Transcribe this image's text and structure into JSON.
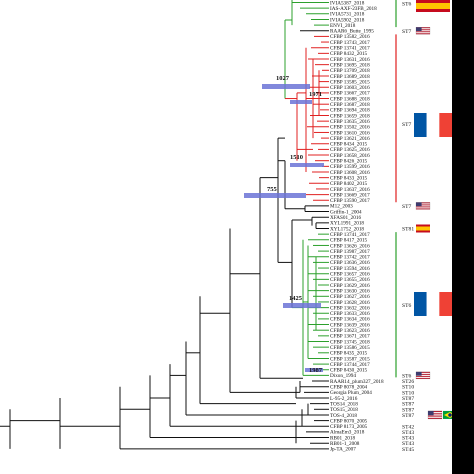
{
  "tree": {
    "nodes": [
      {
        "label": "1027"
      },
      {
        "label": "1971"
      },
      {
        "label": "1510"
      },
      {
        "label": "755"
      },
      {
        "label": "1425"
      },
      {
        "label": "1987"
      }
    ],
    "tips": [
      "IVIA5387_2018",
      "IAS-AXF-23FB_2018",
      "IVIA5731_2018",
      "IVIA5902_2018",
      "ENVI_2018",
      "RAAR6_Butte_1995",
      "CFBP 13582_2016",
      "CFBP 13743_2017",
      "CFBP 13741_2017",
      "CFBP 8432_2015",
      "CFBP 13631_2016",
      "CFBP 13695_2018",
      "CFBP 13709_2018",
      "CFBP 13689_2018",
      "CFBP 13585_2015",
      "CFBP 13603_2016",
      "CFBP 13667_2017",
      "CFBP 13688_2018",
      "CFBP 13687_2018",
      "CFBP 13694_2018",
      "CFBP 13659_2018",
      "CFBP 13635_2016",
      "CFBP 13502_2016",
      "CFBP 13610_2016",
      "CFBP 13621_2016",
      "CFBP 8434_2015",
      "CFBP 13625_2016",
      "CFBP 13658_2016",
      "CFBP 8426_2015",
      "CFBP 13599_2016",
      "CFBP 13608_2016",
      "CFBP 8433_2015",
      "CFBP 8402_2015",
      "CFBP 13637_2016",
      "CFBP 13669_2017",
      "CFBP 13590_2017",
      "M12_2003",
      "Griffin-1_2004",
      "XFAS01_2016",
      "XYL1991_2018",
      "XYL1752_2018",
      "CFBP 13741_2017",
      "CFBP 8417_2015",
      "CFBP 13626_2016",
      "CFBP 13987_2017",
      "CFBP 13742_2017",
      "CFBP 13636_2016",
      "CFBP 13594_2016",
      "CFBP 13657_2016",
      "CFBP 13655_2016",
      "CFBP 13629_2016",
      "CFBP 13630_2016",
      "CFBP 13627_2016",
      "CFBP 13628_2016",
      "CFBP 13632_2016",
      "CFBP 13633_2016",
      "CFBP 13634_2016",
      "CFBP 13639_2016",
      "CFBP 13623_2016",
      "CFBP 13671_2017",
      "CFBP 13745_2018",
      "CFBP 13586_2015",
      "CFBP 8435_2015",
      "CFBP 13587_2015",
      "CFBP 13744_2017",
      "CFBP 8430_2015",
      "Dixon_1994",
      "RAAR14_plum327_2018",
      "CFBP 8078_2004",
      "Georgia Plum_2004",
      "L-95-2_2016",
      "TOS14_2018",
      "TOS15_2018",
      "TOS-4_2018",
      "CFBP 8070_2005",
      "CFBP 8173_2005",
      "AlmaEm3_2018",
      "RB01_2018",
      "RB01-1_2008",
      "Jp-TA_2007"
    ],
    "st_labels": [
      {
        "text": "ST6"
      },
      {
        "text": "ST7"
      },
      {
        "text": "ST7"
      },
      {
        "text": "ST7"
      },
      {
        "text": "ST81"
      },
      {
        "text": "ST6"
      },
      {
        "text": "ST6"
      },
      {
        "text": "ST26"
      },
      {
        "text": "ST10"
      },
      {
        "text": "ST10"
      },
      {
        "text": "ST87"
      },
      {
        "text": "ST87"
      },
      {
        "text": "ST87"
      },
      {
        "text": "ST87"
      },
      {
        "text": "ST42"
      },
      {
        "text": "ST43"
      },
      {
        "text": "ST43"
      },
      {
        "text": "ST43"
      },
      {
        "text": "ST45"
      }
    ],
    "flags": [
      {
        "name": "spain-flag"
      },
      {
        "name": "usa-flag"
      },
      {
        "name": "france-flag"
      },
      {
        "name": "usa-flag"
      },
      {
        "name": "spain-flag"
      },
      {
        "name": "france-flag"
      },
      {
        "name": "usa-flag"
      },
      {
        "name": "usa-flag"
      },
      {
        "name": "brazil-flag"
      },
      {
        "name": "italy-flag"
      }
    ]
  },
  "colors": {
    "green": "#2ca02c",
    "red": "#e02020",
    "blue_bar": "#6b73d6",
    "black": "#111111"
  }
}
